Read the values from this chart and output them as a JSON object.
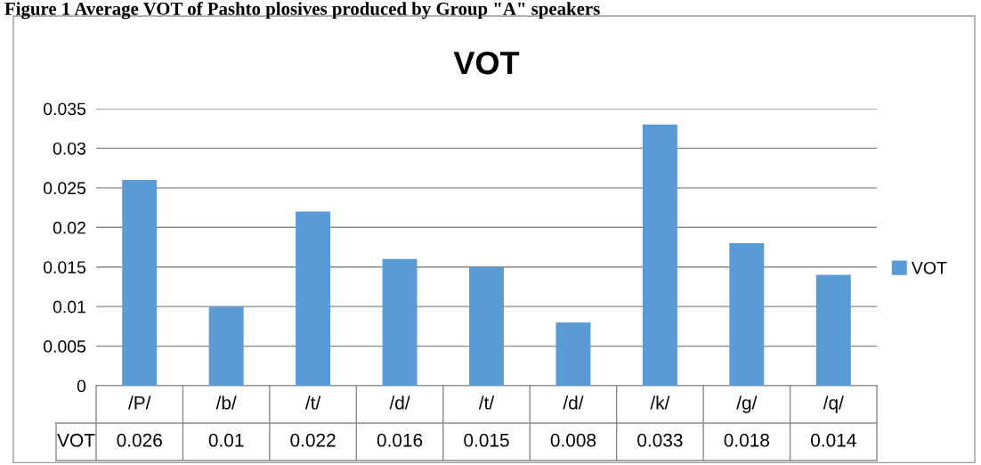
{
  "chart_data": {
    "type": "bar",
    "title": "VOT",
    "annotations": [
      "Figure 1 Average VOT of Pashto plosives produced by Group \"A\" speakers"
    ],
    "categories": [
      "/P/",
      "/b/",
      "/t/",
      "/d/",
      "/t/",
      "/d/",
      "/k/",
      "/g/",
      "/q/"
    ],
    "series": [
      {
        "name": "VOT",
        "color": "#5b9bd5",
        "values": [
          0.026,
          0.01,
          0.022,
          0.016,
          0.015,
          0.008,
          0.033,
          0.018,
          0.014
        ]
      }
    ],
    "ylim": [
      0,
      0.035
    ],
    "yticks": [
      {
        "value": 0,
        "label": "0"
      },
      0.005,
      0.01,
      0.015,
      0.02,
      0.025,
      0.03,
      0.035
    ],
    "grid": "y",
    "legend": "right",
    "data_labels": true
  }
}
